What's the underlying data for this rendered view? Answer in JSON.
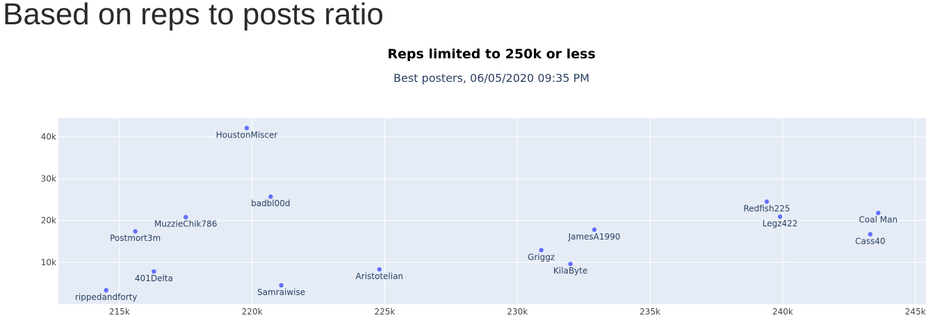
{
  "page": {
    "heading": "Based on reps to posts ratio"
  },
  "colors": {
    "plot_bg": "#e5ecf6",
    "grid": "#ffffff",
    "marker": "#636efa"
  },
  "chart_data": {
    "type": "scatter",
    "title": "Reps limited to 250k or less",
    "subtitle": "Best posters, 06/05/2020 09:35 PM",
    "xlabel": "",
    "ylabel": "",
    "xlim": [
      212700,
      245400
    ],
    "ylim": [
      0,
      44500
    ],
    "x_ticks": [
      215000,
      220000,
      225000,
      230000,
      235000,
      240000,
      245000
    ],
    "x_tick_labels": [
      "215k",
      "220k",
      "225k",
      "230k",
      "235k",
      "240k",
      "245k"
    ],
    "y_ticks": [
      10000,
      20000,
      30000,
      40000
    ],
    "y_tick_labels": [
      "10k",
      "20k",
      "30k",
      "40k"
    ],
    "points": [
      {
        "name": "HoustonMiscer",
        "x": 219800,
        "y": 42100
      },
      {
        "name": "badbl00d",
        "x": 220700,
        "y": 25700
      },
      {
        "name": "MuzzieChik786",
        "x": 217500,
        "y": 20800
      },
      {
        "name": "Postmort3m",
        "x": 215600,
        "y": 17400
      },
      {
        "name": "401Delta",
        "x": 216300,
        "y": 7800
      },
      {
        "name": "rippedandforty",
        "x": 214500,
        "y": 3300
      },
      {
        "name": "Samraiwise",
        "x": 221100,
        "y": 4500
      },
      {
        "name": "Aristotelian",
        "x": 224800,
        "y": 8300
      },
      {
        "name": "Griggz",
        "x": 230900,
        "y": 12900
      },
      {
        "name": "KilaByte",
        "x": 232000,
        "y": 9600
      },
      {
        "name": "JamesA1990",
        "x": 232900,
        "y": 17800
      },
      {
        "name": "Redfish225",
        "x": 239400,
        "y": 24500
      },
      {
        "name": "Legz422",
        "x": 239900,
        "y": 20900
      },
      {
        "name": "Coal Man",
        "x": 243600,
        "y": 21800
      },
      {
        "name": "Cass40",
        "x": 243300,
        "y": 16700
      }
    ]
  }
}
